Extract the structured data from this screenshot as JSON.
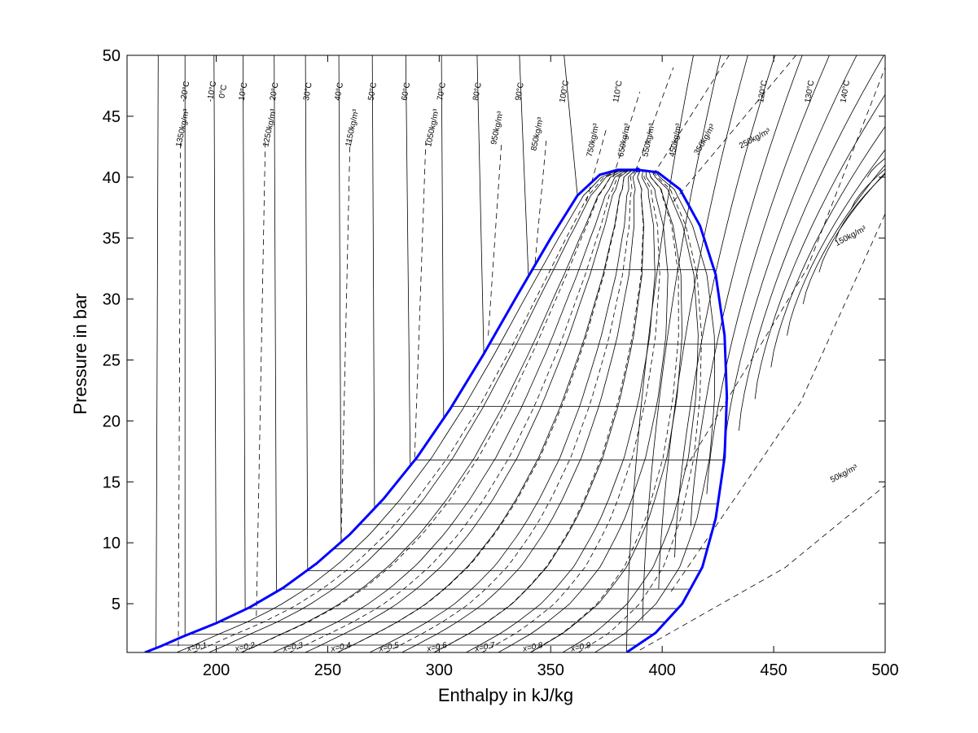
{
  "chart_data": {
    "type": "line",
    "title": "",
    "xlabel": "Enthalpy in kJ/kg",
    "ylabel": "Pressure in bar",
    "xlim": [
      160,
      500
    ],
    "ylim": [
      1,
      50
    ],
    "x_ticks": [
      200,
      250,
      300,
      350,
      400,
      450,
      500
    ],
    "y_ticks": [
      5,
      10,
      15,
      20,
      25,
      30,
      35,
      40,
      45,
      50
    ],
    "grid": false,
    "legend": "none",
    "colors": {
      "saturation_dome": "#0000ff",
      "isolines": "#000000"
    },
    "critical_point": {
      "h": 389,
      "p": 40.6
    },
    "saturated_liquid": {
      "name": "saturated liquid line",
      "points": [
        [
          168,
          1
        ],
        [
          175,
          1.5
        ],
        [
          185,
          2.3
        ],
        [
          200,
          3.4
        ],
        [
          215,
          4.7
        ],
        [
          230,
          6.3
        ],
        [
          245,
          8.3
        ],
        [
          260,
          10.7
        ],
        [
          275,
          13.6
        ],
        [
          290,
          17.0
        ],
        [
          305,
          21.0
        ],
        [
          320,
          25.5
        ],
        [
          335,
          30.3
        ],
        [
          350,
          35.0
        ],
        [
          362,
          38.5
        ],
        [
          372,
          40.2
        ],
        [
          380,
          40.6
        ],
        [
          389,
          40.6
        ]
      ]
    },
    "saturated_vapor": {
      "name": "saturated vapor line",
      "points": [
        [
          389,
          40.6
        ],
        [
          398,
          40.4
        ],
        [
          408,
          39.0
        ],
        [
          417,
          36.0
        ],
        [
          424,
          32.0
        ],
        [
          428,
          27.0
        ],
        [
          429,
          22.0
        ],
        [
          428,
          17.0
        ],
        [
          424,
          12.0
        ],
        [
          418,
          8.0
        ],
        [
          409,
          5.0
        ],
        [
          397,
          2.6
        ],
        [
          384,
          1.0
        ]
      ]
    },
    "isobars_in_dome_bar": [
      1.6,
      2.5,
      3.5,
      4.6,
      6.2,
      7.7,
      9.5,
      11.5,
      13.2,
      16.8,
      21.2,
      26.3,
      32.4
    ],
    "quality_lines": {
      "values": [
        0.1,
        0.2,
        0.3,
        0.4,
        0.5,
        0.6,
        0.7,
        0.8,
        0.9
      ],
      "labels": [
        "x=0.1",
        "x=0.2",
        "x=0.3",
        "x=0.4",
        "x=0.5",
        "x=0.6",
        "x=0.7",
        "x=0.8",
        "x=0.9"
      ]
    },
    "isotherms": {
      "labels": [
        "-20°C",
        "-10°C",
        "0°C",
        "10°C",
        "20°C",
        "30°C",
        "40°C",
        "50°C",
        "60°C",
        "70°C",
        "80°C",
        "90°C",
        "100°C",
        "110°C",
        "120°C",
        "130°C",
        "140°C"
      ],
      "liquid_h_at_50bar": [
        174,
        186,
        199,
        212,
        226,
        240,
        255,
        270,
        285,
        301,
        317,
        336,
        356,
        390,
        463,
        480,
        493
      ],
      "liquid_h_at_sat": [
        173,
        186,
        200,
        213,
        227,
        241,
        256,
        271,
        287,
        302,
        320,
        340,
        362
      ]
    },
    "isochores": {
      "labels": [
        "1350kg/m³",
        "1250kg/m³",
        "1150kg/m³",
        "1050kg/m³",
        "950kg/m³",
        "850kg/m³",
        "750kg/m³",
        "650kg/m³",
        "550kg/m³",
        "450kg/m³",
        "350kg/m³",
        "250kg/m³",
        "150kg/m³",
        "50kg/m³"
      ],
      "values_kg_m3": [
        1350,
        1250,
        1150,
        1050,
        950,
        850,
        750,
        650,
        550,
        450,
        350,
        250,
        150,
        50
      ]
    }
  }
}
